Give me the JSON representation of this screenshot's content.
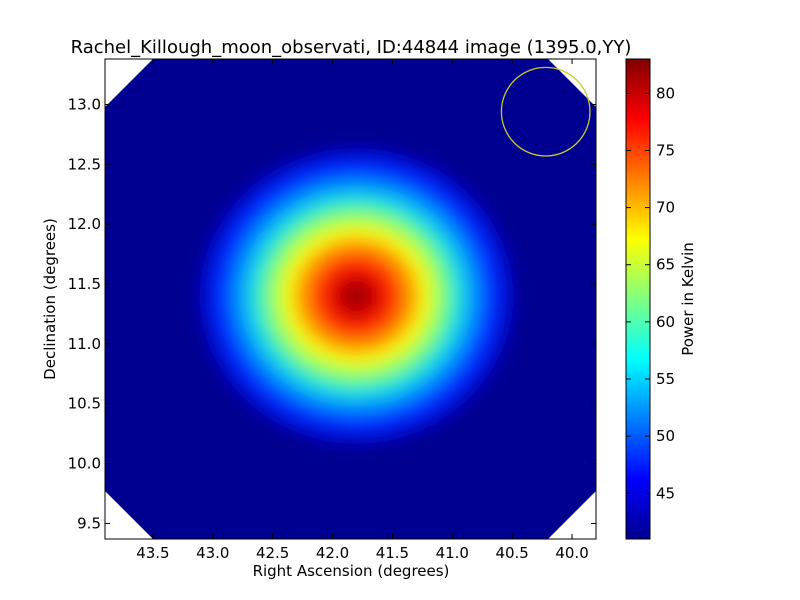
{
  "chart_data": {
    "type": "heatmap",
    "title": "Rachel_Killough_moon_observati, ID:44844 image (1395.0,YY)",
    "xlabel": "Right Ascension (degrees)",
    "ylabel": "Declination (degrees)",
    "colorbar_label": "Power in Kelvin",
    "xlim": [
      43.9,
      39.8
    ],
    "ylim": [
      9.37,
      13.38
    ],
    "xticks": [
      {
        "value": 43.5,
        "label": "43.5"
      },
      {
        "value": 43.0,
        "label": "43.0"
      },
      {
        "value": 42.5,
        "label": "42.5"
      },
      {
        "value": 42.0,
        "label": "42.0"
      },
      {
        "value": 41.5,
        "label": "41.5"
      },
      {
        "value": 41.0,
        "label": "41.0"
      },
      {
        "value": 40.5,
        "label": "40.5"
      },
      {
        "value": 40.0,
        "label": "40.0"
      }
    ],
    "yticks": [
      {
        "value": 9.5,
        "label": "9.5"
      },
      {
        "value": 10.0,
        "label": "10.0"
      },
      {
        "value": 10.5,
        "label": "10.5"
      },
      {
        "value": 11.0,
        "label": "11.0"
      },
      {
        "value": 11.5,
        "label": "11.5"
      },
      {
        "value": 12.0,
        "label": "12.0"
      },
      {
        "value": 12.5,
        "label": "12.5"
      },
      {
        "value": 13.0,
        "label": "13.0"
      }
    ],
    "colorbar": {
      "min": 41.0,
      "max": 83.0,
      "ticks": [
        {
          "value": 45,
          "label": "45"
        },
        {
          "value": 50,
          "label": "50"
        },
        {
          "value": 55,
          "label": "55"
        },
        {
          "value": 60,
          "label": "60"
        },
        {
          "value": 65,
          "label": "65"
        },
        {
          "value": 70,
          "label": "70"
        },
        {
          "value": 75,
          "label": "75"
        },
        {
          "value": 80,
          "label": "80"
        }
      ],
      "colormap": "jet"
    },
    "source": {
      "center_ra": 41.8,
      "center_dec": 11.4,
      "peak_kelvin": 83.0,
      "background_kelvin": 41.0
    },
    "beam_circle": {
      "center_ra": 40.22,
      "center_dec": 12.94,
      "radius_deg": 0.37,
      "color": "#c8c832"
    },
    "colors": {
      "masked_corner": "#ffffff",
      "background": "#ffffff"
    }
  }
}
